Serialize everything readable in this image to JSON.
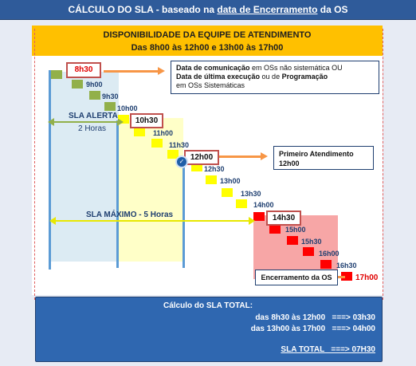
{
  "title": {
    "prefix": "CÁLCULO DO SLA - baseado na ",
    "underlined": "data de Encerramento",
    "suffix": " da OS"
  },
  "availability": {
    "line1": "DISPONIBILIDADE DA EQUIPE DE ATENDIMENTO",
    "line2": "Das 8h00 às 12h00    e    13h00 às 17h00"
  },
  "times": [
    "8h30",
    "9h00",
    "9h30",
    "10h00",
    "10h30",
    "11h00",
    "11h30",
    "12h00",
    "12h30",
    "13h00",
    "13h30",
    "14h00",
    "14h30",
    "15h00",
    "15h30",
    "16h00",
    "16h30",
    "17h00"
  ],
  "notes": {
    "communication": {
      "l1a": "Data de comunicação",
      "l1b": " em OSs não sistemática  OU",
      "l2a": "Data de última execução",
      "l2b": "  ou de ",
      "l2c": "Programação",
      "l3": "em OSs Sistemáticas"
    },
    "first_service": {
      "l1": "Primeiro Atendimento",
      "l2": "12h00"
    },
    "closing": "Encerramento da OS"
  },
  "sla_alert": {
    "label": "SLA ALERTA",
    "value": "2 Horas"
  },
  "sla_max": {
    "label": "SLA MÁXIMO - 5 Horas"
  },
  "summary": {
    "title": "Cálculo do SLA TOTAL:",
    "row1": "das 8h30 às 12h00   ===> 03h30",
    "row2": "das 13h00 às 17h00   ===> 04h00",
    "total": "SLA TOTAL   ===> 07H30"
  },
  "colors": {
    "green": "#92b04a",
    "yellow": "#ffff00",
    "red": "#ff0000",
    "orange": "#f79646",
    "accent_blue": "#2f5b9a"
  }
}
